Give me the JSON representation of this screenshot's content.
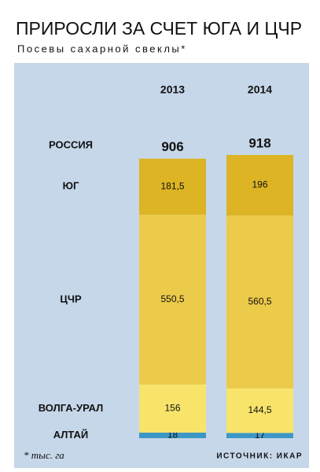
{
  "chart_data": {
    "type": "stacked_bar",
    "title": "ПРИРОСЛИ ЗА СЧЕТ ЮГА И ЦЧР",
    "subtitle": "Посевы сахарной свеклы*",
    "categories": [
      "2013",
      "2014"
    ],
    "total_label": "РОССИЯ",
    "totals": [
      906,
      918
    ],
    "series": [
      {
        "name": "АЛТАЙ",
        "color": "#3d97c7",
        "values": [
          18,
          17
        ]
      },
      {
        "name": "ВОЛГА-УРАЛ",
        "color": "#f8e46a",
        "values": [
          156,
          144.5
        ],
        "value_labels": [
          "156",
          "144,5"
        ]
      },
      {
        "name": "ЦЧР",
        "color": "#ecca4a",
        "values": [
          550.5,
          560.5
        ],
        "value_labels": [
          "550,5",
          "560,5"
        ]
      },
      {
        "name": "ЮГ",
        "color": "#dcb424",
        "values": [
          181.5,
          196
        ],
        "value_labels": [
          "181,5",
          "196"
        ]
      }
    ],
    "footnote": "* тыс. га",
    "source": "ИСТОЧНИК: ИКАР"
  }
}
